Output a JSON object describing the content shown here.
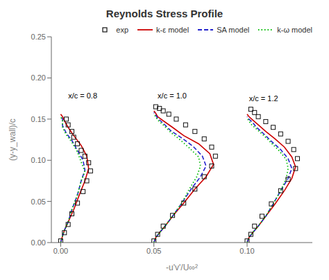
{
  "chart_data": {
    "type": "line",
    "title": "Reynolds Stress Profile",
    "x_label": "-u'v'/U∞²",
    "y_label": "(y-y_wall)/c",
    "xlim": [
      -0.005,
      0.135
    ],
    "ylim": [
      0.0,
      0.25
    ],
    "xticks": [
      {
        "value": 0.0,
        "label": "0.00"
      },
      {
        "value": 0.05,
        "label": "0.05"
      },
      {
        "value": 0.1,
        "label": "0.10"
      }
    ],
    "yticks": [
      {
        "value": 0.0,
        "label": "0.00"
      },
      {
        "value": 0.05,
        "label": "0.05"
      },
      {
        "value": 0.1,
        "label": "0.10"
      },
      {
        "value": 0.15,
        "label": "0.15"
      },
      {
        "value": 0.2,
        "label": "0.20"
      },
      {
        "value": 0.25,
        "label": "0.25"
      }
    ],
    "grid": false,
    "legend": "upper right",
    "annotations": [
      {
        "text": "x/c = 0.8",
        "x": 0.004,
        "y": 0.175
      },
      {
        "text": "x/c = 1.0",
        "x": 0.052,
        "y": 0.175
      },
      {
        "text": "x/c = 1.2",
        "x": 0.101,
        "y": 0.172
      }
    ],
    "series": [
      {
        "name": "exp",
        "type": "scatter",
        "color": "#111111",
        "marker": "square",
        "x": [
          0.0,
          0.002,
          0.004,
          0.006,
          0.009,
          0.012,
          0.014,
          0.016,
          0.015,
          0.013,
          0.011,
          0.009,
          0.007,
          0.006,
          0.004,
          0.003,
          0.05,
          0.052,
          0.055,
          0.06,
          0.066,
          0.072,
          0.077,
          0.081,
          0.083,
          0.081,
          0.077,
          0.072,
          0.067,
          0.062,
          0.058,
          0.055,
          0.053,
          0.051,
          0.1,
          0.102,
          0.104,
          0.108,
          0.113,
          0.118,
          0.122,
          0.126,
          0.127,
          0.125,
          0.122,
          0.118,
          0.114,
          0.11,
          0.106,
          0.104,
          0.102
        ],
        "values": [
          0.002,
          0.012,
          0.022,
          0.035,
          0.048,
          0.062,
          0.075,
          0.087,
          0.097,
          0.105,
          0.112,
          0.12,
          0.128,
          0.135,
          0.143,
          0.15,
          0.002,
          0.01,
          0.02,
          0.033,
          0.048,
          0.065,
          0.08,
          0.093,
          0.105,
          0.116,
          0.126,
          0.135,
          0.143,
          0.15,
          0.156,
          0.16,
          0.163,
          0.165,
          0.002,
          0.01,
          0.02,
          0.032,
          0.047,
          0.063,
          0.077,
          0.09,
          0.102,
          0.113,
          0.123,
          0.132,
          0.14,
          0.147,
          0.153,
          0.158,
          0.162
        ]
      },
      {
        "name": "k-ε model",
        "type": "line",
        "color": "#cc0000",
        "line_style": "solid",
        "x": [
          0.0,
          0.001,
          0.002,
          0.004,
          0.007,
          0.01,
          0.013,
          0.015,
          0.014,
          0.011,
          0.007,
          0.004,
          0.002,
          0.001,
          0.0,
          null,
          0.05,
          0.051,
          0.053,
          0.056,
          0.06,
          0.066,
          0.072,
          0.078,
          0.082,
          0.08,
          0.074,
          0.066,
          0.06,
          0.055,
          0.052,
          0.051,
          0.05,
          null,
          0.1,
          0.101,
          0.103,
          0.106,
          0.11,
          0.115,
          0.12,
          0.124,
          0.126,
          0.124,
          0.12,
          0.115,
          0.11,
          0.106,
          0.103,
          0.101,
          0.1
        ],
        "values": [
          0.0,
          0.008,
          0.015,
          0.025,
          0.04,
          0.058,
          0.075,
          0.09,
          0.105,
          0.118,
          0.13,
          0.14,
          0.148,
          0.153,
          0.156,
          null,
          0.0,
          0.006,
          0.012,
          0.02,
          0.032,
          0.048,
          0.065,
          0.08,
          0.095,
          0.108,
          0.12,
          0.13,
          0.14,
          0.148,
          0.153,
          0.157,
          0.16,
          null,
          0.0,
          0.006,
          0.012,
          0.02,
          0.032,
          0.047,
          0.063,
          0.078,
          0.092,
          0.104,
          0.116,
          0.126,
          0.135,
          0.143,
          0.149,
          0.153,
          0.156
        ]
      },
      {
        "name": "SA model",
        "type": "line",
        "color": "#2222cc",
        "line_style": "dashed",
        "x": [
          0.0,
          0.001,
          0.002,
          0.004,
          0.006,
          0.009,
          0.011,
          0.013,
          0.012,
          0.009,
          0.006,
          0.003,
          0.001,
          0.001,
          0.0,
          null,
          0.05,
          0.051,
          0.053,
          0.056,
          0.06,
          0.065,
          0.07,
          0.075,
          0.078,
          0.076,
          0.071,
          0.065,
          0.059,
          0.055,
          0.052,
          0.051,
          0.05,
          null,
          0.1,
          0.101,
          0.103,
          0.106,
          0.11,
          0.114,
          0.118,
          0.122,
          0.124,
          0.122,
          0.118,
          0.113,
          0.109,
          0.105,
          0.103,
          0.101,
          0.1
        ],
        "values": [
          0.0,
          0.008,
          0.015,
          0.025,
          0.04,
          0.058,
          0.075,
          0.088,
          0.1,
          0.112,
          0.124,
          0.133,
          0.142,
          0.15,
          0.154,
          null,
          0.0,
          0.006,
          0.012,
          0.02,
          0.032,
          0.048,
          0.065,
          0.08,
          0.093,
          0.105,
          0.117,
          0.127,
          0.136,
          0.145,
          0.151,
          0.155,
          0.158,
          null,
          0.0,
          0.006,
          0.012,
          0.02,
          0.032,
          0.047,
          0.063,
          0.078,
          0.09,
          0.102,
          0.113,
          0.123,
          0.132,
          0.14,
          0.146,
          0.15,
          0.153
        ]
      },
      {
        "name": "k-ω model",
        "type": "line",
        "color": "#00bb00",
        "line_style": "dotted",
        "x": [
          0.0,
          0.001,
          0.002,
          0.004,
          0.006,
          0.009,
          0.011,
          0.013,
          0.011,
          0.009,
          0.006,
          0.003,
          0.001,
          0.001,
          0.0,
          null,
          0.05,
          0.051,
          0.053,
          0.056,
          0.06,
          0.065,
          0.069,
          0.073,
          0.075,
          0.074,
          0.069,
          0.064,
          0.059,
          0.055,
          0.052,
          0.051,
          0.05,
          null,
          0.1,
          0.101,
          0.103,
          0.106,
          0.11,
          0.114,
          0.118,
          0.121,
          0.122,
          0.121,
          0.117,
          0.113,
          0.109,
          0.105,
          0.102,
          0.101,
          0.1
        ],
        "values": [
          0.0,
          0.008,
          0.015,
          0.025,
          0.04,
          0.058,
          0.075,
          0.086,
          0.098,
          0.11,
          0.122,
          0.131,
          0.14,
          0.148,
          0.153,
          null,
          0.0,
          0.006,
          0.012,
          0.02,
          0.032,
          0.048,
          0.065,
          0.08,
          0.093,
          0.104,
          0.115,
          0.125,
          0.134,
          0.143,
          0.149,
          0.153,
          0.156,
          null,
          0.0,
          0.006,
          0.012,
          0.02,
          0.032,
          0.047,
          0.063,
          0.078,
          0.09,
          0.101,
          0.112,
          0.121,
          0.13,
          0.138,
          0.144,
          0.148,
          0.151
        ]
      }
    ]
  }
}
